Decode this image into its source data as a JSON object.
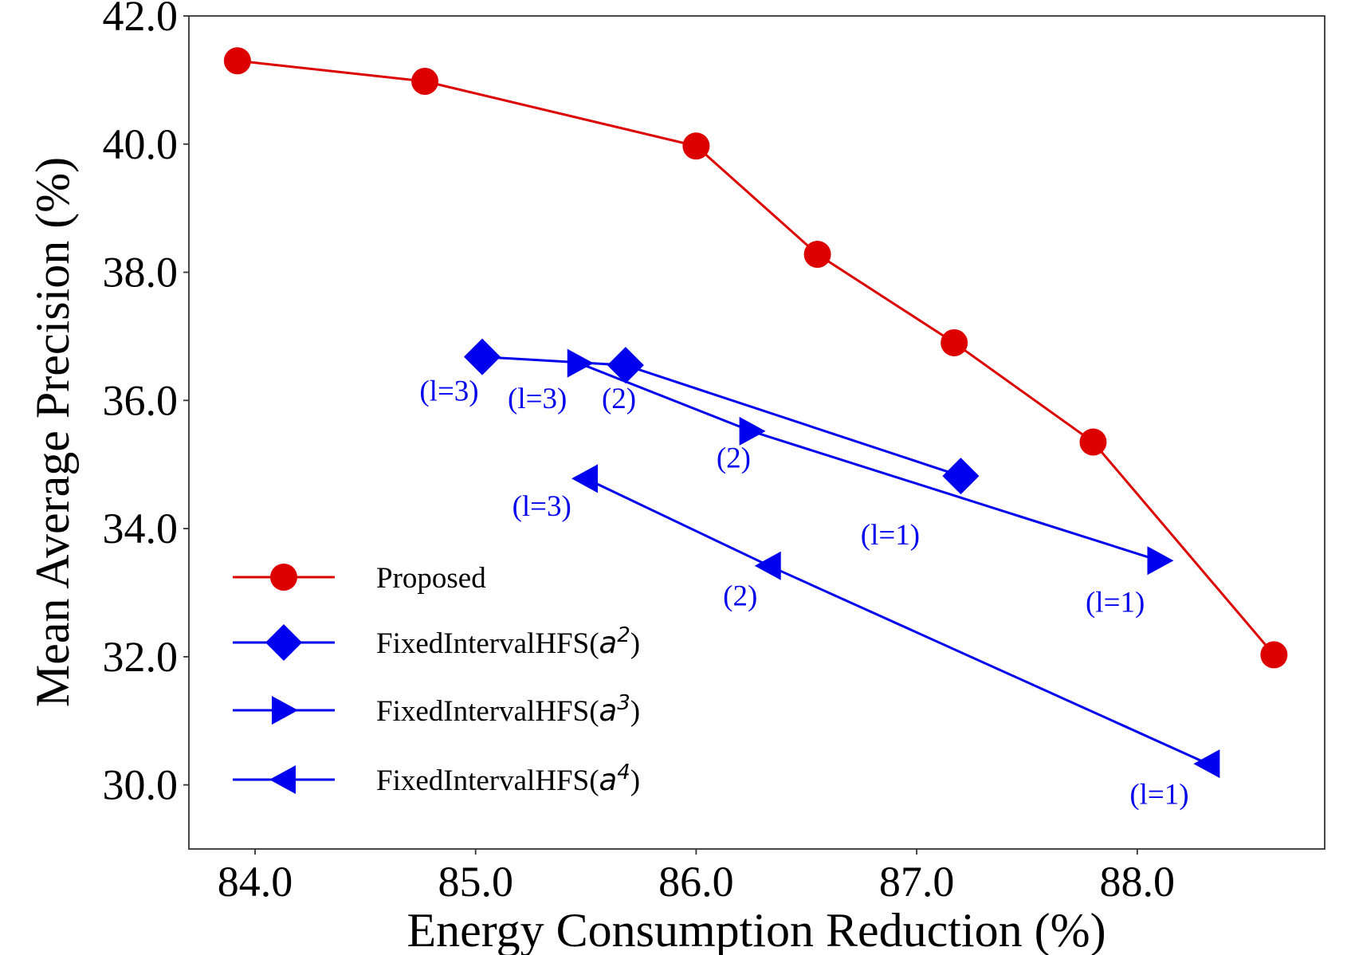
{
  "chart_data": {
    "type": "line",
    "xlabel": "Energy Consumption Reduction (%)",
    "ylabel": "Mean Average Precision (%)",
    "xlim": [
      83.7,
      88.85
    ],
    "ylim": [
      29.0,
      42.0
    ],
    "xticks": [
      84.0,
      85.0,
      86.0,
      87.0,
      88.0
    ],
    "yticks": [
      30.0,
      32.0,
      34.0,
      36.0,
      38.0,
      40.0,
      42.0
    ],
    "xtick_labels": [
      "84.0",
      "85.0",
      "86.0",
      "87.0",
      "88.0"
    ],
    "ytick_labels": [
      "30.0",
      "32.0",
      "34.0",
      "36.0",
      "38.0",
      "40.0",
      "42.0"
    ],
    "grid": false,
    "legend_position": "lower-left",
    "series": [
      {
        "name": "Proposed",
        "color": "#dd0000",
        "marker": "circle",
        "x": [
          83.92,
          84.77,
          86.0,
          86.55,
          87.17,
          87.8,
          88.62
        ],
        "y": [
          41.3,
          40.98,
          39.97,
          38.28,
          36.9,
          35.35,
          32.03
        ]
      },
      {
        "name": "FixedIntervalHFS(a2)",
        "legend_prefix": "FixedIntervalHFS(",
        "legend_base": "a",
        "legend_exp": "2",
        "legend_suffix": ")",
        "color": "#0000ee",
        "marker": "diamond",
        "x": [
          85.03,
          85.68,
          87.2
        ],
        "y": [
          36.68,
          36.55,
          34.82
        ]
      },
      {
        "name": "FixedIntervalHFS(a3)",
        "legend_prefix": "FixedIntervalHFS(",
        "legend_base": "a",
        "legend_exp": "3",
        "legend_suffix": ")",
        "color": "#0000ee",
        "marker": "triangle-right",
        "x": [
          85.47,
          86.25,
          88.1
        ],
        "y": [
          36.58,
          35.52,
          33.5
        ]
      },
      {
        "name": "FixedIntervalHFS(a4)",
        "legend_prefix": "FixedIntervalHFS(",
        "legend_base": "a",
        "legend_exp": "4",
        "legend_suffix": ")",
        "color": "#0000ee",
        "marker": "triangle-left",
        "x": [
          85.5,
          86.33,
          88.32
        ],
        "y": [
          34.78,
          33.42,
          30.33
        ]
      }
    ],
    "annotations": [
      {
        "text": "(l=3)",
        "x": 84.88,
        "y": 36.0
      },
      {
        "text": "(l=3)",
        "x": 85.28,
        "y": 35.88
      },
      {
        "text": "(2)",
        "x": 85.65,
        "y": 35.88
      },
      {
        "text": "(2)",
        "x": 86.17,
        "y": 34.95
      },
      {
        "text": "(l=3)",
        "x": 85.3,
        "y": 34.2
      },
      {
        "text": "(l=1)",
        "x": 86.88,
        "y": 33.75
      },
      {
        "text": "(2)",
        "x": 86.2,
        "y": 32.8
      },
      {
        "text": "(l=1)",
        "x": 87.9,
        "y": 32.7
      },
      {
        "text": "(l=1)",
        "x": 88.1,
        "y": 29.7
      }
    ]
  }
}
